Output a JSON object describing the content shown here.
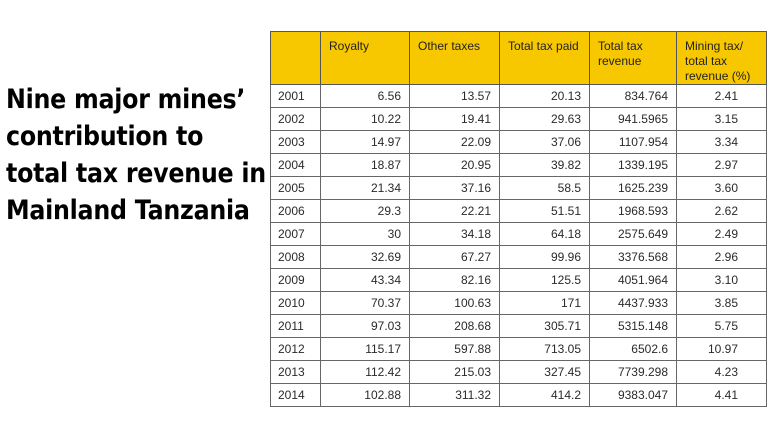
{
  "title_lines": [
    "Nine major mines’",
    "contribution to",
    "total tax revenue in",
    "Mainland Tanzania"
  ],
  "chart_data": {
    "type": "table",
    "title": "Nine major mines’ contribution to total tax revenue in Mainland Tanzania",
    "columns": [
      "",
      "Royalty",
      "Other taxes",
      "Total tax paid",
      "Total tax revenue",
      "Mining tax/ total tax revenue (%)"
    ],
    "rows": [
      [
        "2001",
        "6.56",
        "13.57",
        "20.13",
        "834.764",
        "2.41"
      ],
      [
        "2002",
        "10.22",
        "19.41",
        "29.63",
        "941.5965",
        "3.15"
      ],
      [
        "2003",
        "14.97",
        "22.09",
        "37.06",
        "1107.954",
        "3.34"
      ],
      [
        "2004",
        "18.87",
        "20.95",
        "39.82",
        "1339.195",
        "2.97"
      ],
      [
        "2005",
        "21.34",
        "37.16",
        "58.5",
        "1625.239",
        "3.60"
      ],
      [
        "2006",
        "29.3",
        "22.21",
        "51.51",
        "1968.593",
        "2.62"
      ],
      [
        "2007",
        "30",
        "34.18",
        "64.18",
        "2575.649",
        "2.49"
      ],
      [
        "2008",
        "32.69",
        "67.27",
        "99.96",
        "3376.568",
        "2.96"
      ],
      [
        "2009",
        "43.34",
        "82.16",
        "125.5",
        "4051.964",
        "3.10"
      ],
      [
        "2010",
        "70.37",
        "100.63",
        "171",
        "4437.933",
        "3.85"
      ],
      [
        "2011",
        "97.03",
        "208.68",
        "305.71",
        "5315.148",
        "5.75"
      ],
      [
        "2012",
        "115.17",
        "597.88",
        "713.05",
        "6502.6",
        "10.97"
      ],
      [
        "2013",
        "112.42",
        "215.03",
        "327.45",
        "7739.298",
        "4.23"
      ],
      [
        "2014",
        "102.88",
        "311.32",
        "414.2",
        "9383.047",
        "4.41"
      ]
    ]
  },
  "header_lines": [
    [
      ""
    ],
    [
      "Royalty"
    ],
    [
      "Other taxes"
    ],
    [
      "Total tax paid"
    ],
    [
      "Total tax",
      "revenue"
    ],
    [
      "Mining tax/",
      "total tax",
      "revenue (%)"
    ]
  ],
  "colors": {
    "header_bg": "#f7c800",
    "border": "#666666"
  }
}
